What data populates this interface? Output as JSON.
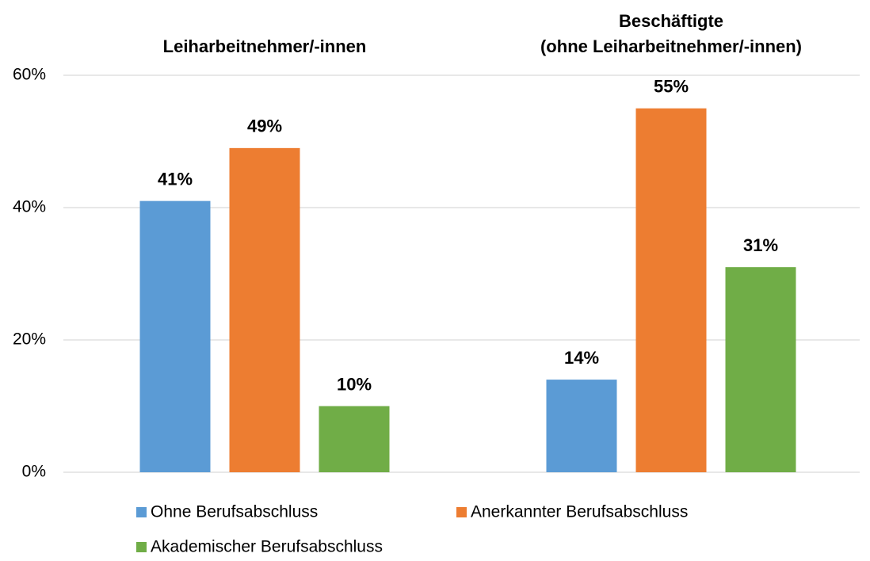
{
  "chart_data": {
    "type": "bar",
    "categories": [
      "Leiharbeitnehmer/-innen",
      "Beschäftigte\n(ohne Leiharbeitnehmer/-innen)"
    ],
    "series": [
      {
        "name": "Ohne Berufsabschluss",
        "color": "#5b9bd5",
        "values": [
          41,
          14
        ],
        "value_labels": [
          "41%",
          "14%"
        ]
      },
      {
        "name": "Anerkannter Berufsabschluss",
        "color": "#ed7d31",
        "values": [
          49,
          55
        ],
        "value_labels": [
          "49%",
          "55%"
        ]
      },
      {
        "name": "Akademischer Berufsabschluss",
        "color": "#70ad47",
        "values": [
          10,
          31
        ],
        "value_labels": [
          "10%",
          "31%"
        ]
      }
    ],
    "ylim": [
      0,
      60
    ],
    "yticks": [
      {
        "value": 0,
        "label": "0%"
      },
      {
        "value": 20,
        "label": "20%"
      },
      {
        "value": 40,
        "label": "40%"
      },
      {
        "value": 60,
        "label": "60%"
      }
    ],
    "grid": true
  }
}
